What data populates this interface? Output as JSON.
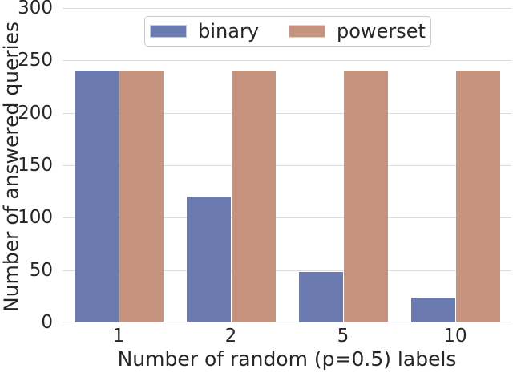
{
  "figure": {
    "background_color": "#ffffff",
    "text_color": "#262626",
    "grid_color": "#dcdcdc",
    "legend_border_color": "#cccccc"
  },
  "chart_data": {
    "type": "bar",
    "title": "",
    "xlabel": "Number of random (p=0.5) labels",
    "ylabel": "Number of answered queries",
    "categories": [
      "1",
      "2",
      "5",
      "10"
    ],
    "series": [
      {
        "name": "binary",
        "color": "#6b7ab0",
        "values": [
          240,
          120,
          48,
          24
        ]
      },
      {
        "name": "powerset",
        "color": "#c6947e",
        "values": [
          240,
          240,
          240,
          240
        ]
      }
    ],
    "ylim": [
      0,
      300
    ],
    "yticks": [
      0,
      50,
      100,
      150,
      200,
      250,
      300
    ],
    "grid": "horizontal",
    "legend_position": "upper center"
  }
}
